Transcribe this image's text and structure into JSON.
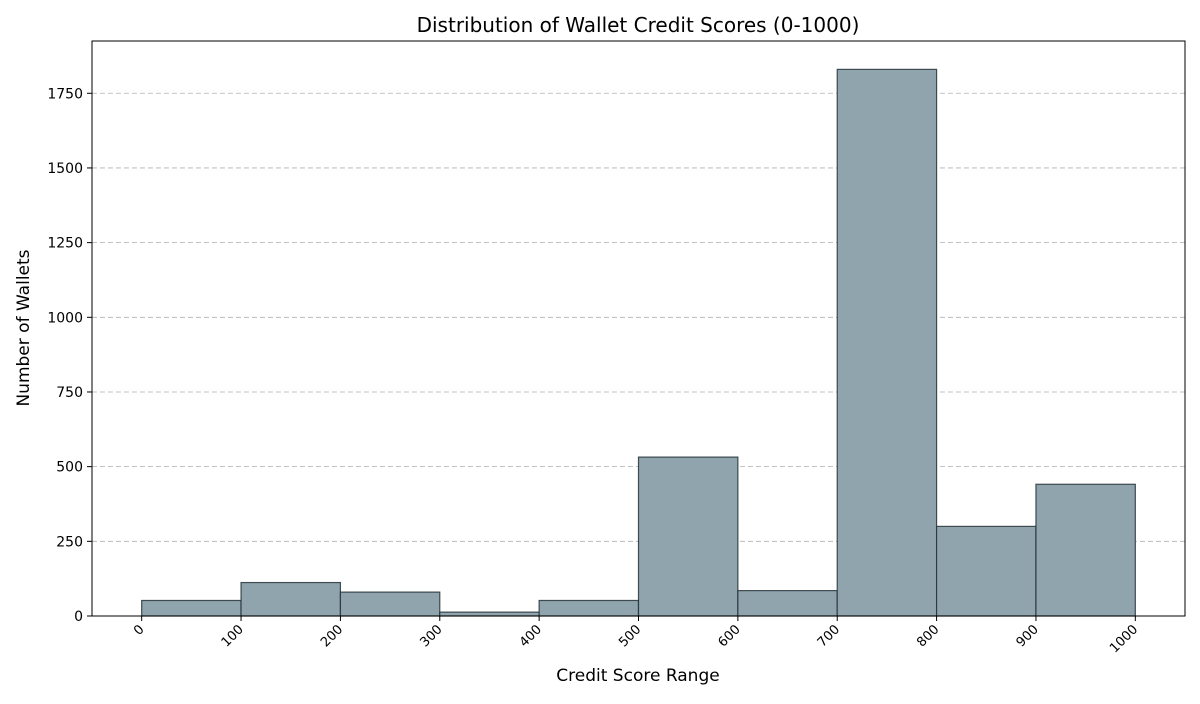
{
  "chart_data": {
    "type": "bar",
    "title": "Distribution of Wallet Credit Scores (0-1000)",
    "xlabel": "Credit Score Range",
    "ylabel": "Number of Wallets",
    "bin_edges": [
      0,
      100,
      200,
      300,
      400,
      500,
      600,
      700,
      800,
      900,
      1000
    ],
    "x_tick_labels": [
      "0",
      "100",
      "200",
      "300",
      "400",
      "500",
      "600",
      "700",
      "800",
      "900",
      "1000"
    ],
    "values": [
      52,
      112,
      80,
      13,
      52,
      532,
      85,
      1830,
      300,
      441
    ],
    "y_ticks": [
      0,
      250,
      500,
      750,
      1000,
      1250,
      1500,
      1750
    ],
    "xlim": [
      -50,
      1050
    ],
    "ylim": [
      0,
      1925
    ],
    "grid": "y-dashed",
    "colors": {
      "bar_fill": "#90a4ae",
      "bar_edge": "#263238",
      "grid": "#b0b0b0"
    }
  }
}
